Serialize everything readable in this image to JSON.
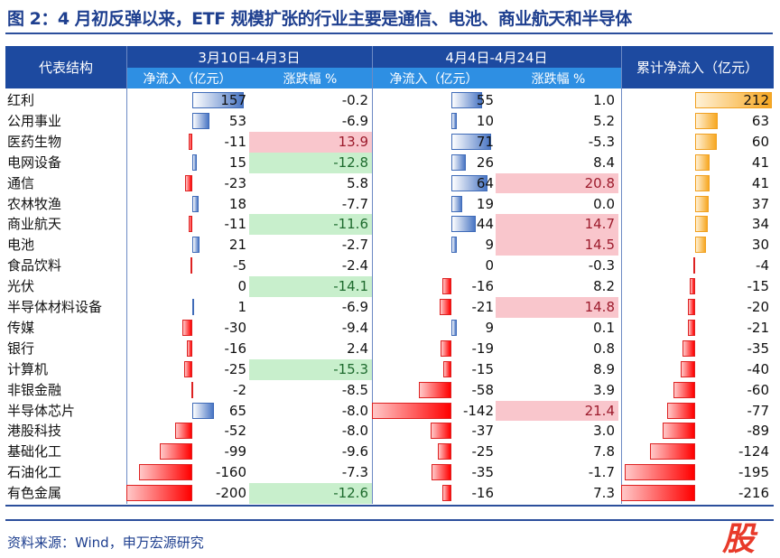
{
  "title": "图 2：4 月初反弹以来，ETF 规模扩张的行业主要是通信、电池、商业航天和半导体",
  "source": "资料来源：Wind，申万宏源研究",
  "watermark": "股",
  "chart_data": {
    "type": "table",
    "headers": {
      "structure": "代表结构",
      "period1": "3月10日-4月3日",
      "period2": "4月4日-4月24日",
      "cumulative": "累计净流入（亿元）",
      "inflow": "净流入（亿元）",
      "change": "涨跌幅 %"
    },
    "colors": {
      "positive_bar": "#4a76c4",
      "negative_bar": "#ff0000",
      "cumulative_bar": "#f7a823",
      "highlight_high": "#f9c6cc",
      "highlight_low": "#c8efcc"
    },
    "rows": [
      {
        "name": "红利",
        "in1": 157,
        "ch1": "-0.2",
        "in2": 55,
        "ch2": "1.0",
        "cum": 212,
        "h1": "",
        "h2": ""
      },
      {
        "name": "公用事业",
        "in1": 53,
        "ch1": "-6.9",
        "in2": 10,
        "ch2": "5.2",
        "cum": 63,
        "h1": "",
        "h2": ""
      },
      {
        "name": "医药生物",
        "in1": -11,
        "ch1": "13.9",
        "in2": 71,
        "ch2": "-5.3",
        "cum": 60,
        "h1": "high",
        "h2": ""
      },
      {
        "name": "电网设备",
        "in1": 15,
        "ch1": "-12.8",
        "in2": 26,
        "ch2": "8.4",
        "cum": 41,
        "h1": "low",
        "h2": ""
      },
      {
        "name": "通信",
        "in1": -23,
        "ch1": "5.8",
        "in2": 64,
        "ch2": "20.8",
        "cum": 41,
        "h1": "",
        "h2": "high"
      },
      {
        "name": "农林牧渔",
        "in1": 18,
        "ch1": "-7.7",
        "in2": 19,
        "ch2": "0.0",
        "cum": 37,
        "h1": "",
        "h2": ""
      },
      {
        "name": "商业航天",
        "in1": -11,
        "ch1": "-11.6",
        "in2": 44,
        "ch2": "14.7",
        "cum": 34,
        "h1": "low",
        "h2": "high"
      },
      {
        "name": "电池",
        "in1": 21,
        "ch1": "-2.7",
        "in2": 9,
        "ch2": "14.5",
        "cum": 30,
        "h1": "",
        "h2": "high"
      },
      {
        "name": "食品饮料",
        "in1": -5,
        "ch1": "-2.4",
        "in2": 0,
        "ch2": "-0.3",
        "cum": -4,
        "h1": "",
        "h2": ""
      },
      {
        "name": "光伏",
        "in1": 0,
        "ch1": "-14.1",
        "in2": -16,
        "ch2": "8.2",
        "cum": -15,
        "h1": "low",
        "h2": ""
      },
      {
        "name": "半导体材料设备",
        "in1": 1,
        "ch1": "-6.9",
        "in2": -21,
        "ch2": "14.8",
        "cum": -20,
        "h1": "",
        "h2": "high"
      },
      {
        "name": "传媒",
        "in1": -30,
        "ch1": "-9.4",
        "in2": 9,
        "ch2": "0.1",
        "cum": -21,
        "h1": "",
        "h2": ""
      },
      {
        "name": "银行",
        "in1": -16,
        "ch1": "2.4",
        "in2": -19,
        "ch2": "0.8",
        "cum": -35,
        "h1": "",
        "h2": ""
      },
      {
        "name": "计算机",
        "in1": -25,
        "ch1": "-15.3",
        "in2": -15,
        "ch2": "8.9",
        "cum": -40,
        "h1": "low",
        "h2": ""
      },
      {
        "name": "非银金融",
        "in1": -2,
        "ch1": "-8.5",
        "in2": -58,
        "ch2": "3.9",
        "cum": -60,
        "h1": "",
        "h2": ""
      },
      {
        "name": "半导体芯片",
        "in1": 65,
        "ch1": "-8.0",
        "in2": -142,
        "ch2": "21.4",
        "cum": -77,
        "h1": "",
        "h2": "high"
      },
      {
        "name": "港股科技",
        "in1": -52,
        "ch1": "-8.0",
        "in2": -37,
        "ch2": "3.0",
        "cum": -89,
        "h1": "",
        "h2": ""
      },
      {
        "name": "基础化工",
        "in1": -99,
        "ch1": "-9.6",
        "in2": -25,
        "ch2": "7.8",
        "cum": -124,
        "h1": "",
        "h2": ""
      },
      {
        "name": "石油化工",
        "in1": -160,
        "ch1": "-7.3",
        "in2": -35,
        "ch2": "-1.7",
        "cum": -195,
        "h1": "",
        "h2": ""
      },
      {
        "name": "有色金属",
        "in1": -200,
        "ch1": "-12.6",
        "in2": -16,
        "ch2": "7.3",
        "cum": -216,
        "h1": "low",
        "h2": ""
      }
    ]
  }
}
